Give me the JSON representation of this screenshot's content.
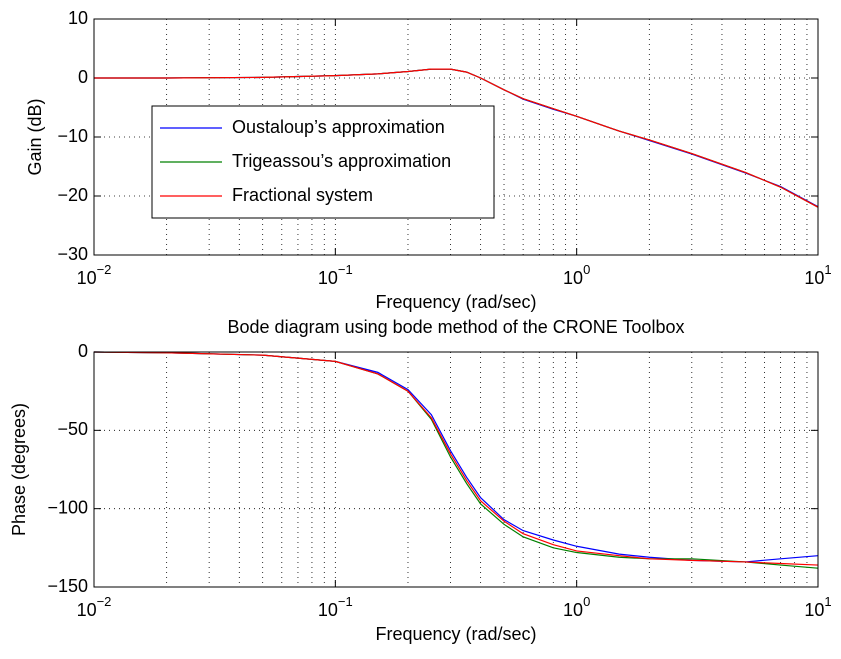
{
  "chart_data": [
    {
      "type": "line",
      "xscale": "log",
      "grid": true,
      "minor_grid": true,
      "legend": "left",
      "xlabel": "Frequency (rad/sec)",
      "ylabel": "Gain (dB)",
      "xlim": [
        0.01,
        10
      ],
      "ylim": [
        -30,
        10
      ],
      "xticks": [
        {
          "value": 0.01,
          "label": "10",
          "exponent": "−2"
        },
        {
          "value": 0.1,
          "label": "10",
          "exponent": "−1"
        },
        {
          "value": 1,
          "label": "10",
          "exponent": "0"
        },
        {
          "value": 10,
          "label": "10",
          "exponent": "1"
        }
      ],
      "yticks": [
        {
          "value": -30,
          "label": "−30"
        },
        {
          "value": -20,
          "label": "−20"
        },
        {
          "value": -10,
          "label": "−10"
        },
        0,
        10
      ],
      "x": [
        0.01,
        0.02,
        0.05,
        0.1,
        0.15,
        0.2,
        0.25,
        0.3,
        0.35,
        0.4,
        0.5,
        0.6,
        0.8,
        1,
        1.5,
        2,
        3,
        5,
        7,
        10
      ],
      "series": [
        {
          "name": "Oustaloup’s approximation",
          "color": "#0000ff",
          "values": [
            0,
            0,
            0.1,
            0.4,
            0.7,
            1.1,
            1.5,
            1.5,
            1.0,
            0,
            -2.0,
            -3.6,
            -5.3,
            -6.5,
            -9.0,
            -10.6,
            -12.9,
            -16.1,
            -18.4,
            -21.8
          ]
        },
        {
          "name": "Trigeassou’s approximation",
          "color": "#008000",
          "values": [
            0,
            0,
            0.1,
            0.4,
            0.7,
            1.1,
            1.5,
            1.5,
            1.0,
            0,
            -2.0,
            -3.5,
            -5.2,
            -6.5,
            -9.0,
            -10.5,
            -12.8,
            -16.0,
            -18.5,
            -21.9
          ]
        },
        {
          "name": "Fractional system",
          "color": "#ff0000",
          "values": [
            0,
            0,
            0.1,
            0.4,
            0.7,
            1.1,
            1.5,
            1.5,
            1.0,
            0,
            -2.0,
            -3.5,
            -5.2,
            -6.5,
            -9.0,
            -10.5,
            -12.8,
            -16.0,
            -18.5,
            -21.9
          ]
        }
      ]
    },
    {
      "type": "line",
      "xscale": "log",
      "grid": true,
      "minor_grid": true,
      "legend": "none",
      "title": "Bode diagram using bode method of the CRONE Toolbox",
      "xlabel": "Frequency (rad/sec)",
      "ylabel": "Phase (degrees)",
      "xlim": [
        0.01,
        10
      ],
      "ylim": [
        -150,
        0
      ],
      "xticks": [
        {
          "value": 0.01,
          "label": "10",
          "exponent": "−2"
        },
        {
          "value": 0.1,
          "label": "10",
          "exponent": "−1"
        },
        {
          "value": 1,
          "label": "10",
          "exponent": "0"
        },
        {
          "value": 10,
          "label": "10",
          "exponent": "1"
        }
      ],
      "yticks": [
        {
          "value": -150,
          "label": "−150"
        },
        {
          "value": -100,
          "label": "−100"
        },
        {
          "value": -50,
          "label": "−50"
        },
        0
      ],
      "x": [
        0.01,
        0.02,
        0.05,
        0.1,
        0.15,
        0.2,
        0.25,
        0.3,
        0.35,
        0.4,
        0.5,
        0.6,
        0.8,
        1,
        1.5,
        2,
        3,
        5,
        7,
        10
      ],
      "series": [
        {
          "name": "Oustaloup’s approximation",
          "color": "#0000ff",
          "values": [
            0,
            -0.5,
            -2,
            -6,
            -13,
            -24,
            -40,
            -63,
            -80,
            -93,
            -107,
            -114,
            -120,
            -124,
            -129,
            -131,
            -133,
            -134,
            -132,
            -130
          ]
        },
        {
          "name": "Trigeassou’s approximation",
          "color": "#008000",
          "values": [
            0,
            -0.5,
            -2,
            -6,
            -14,
            -25,
            -43,
            -67,
            -84,
            -97,
            -110,
            -118,
            -125,
            -128,
            -131,
            -132,
            -132,
            -134,
            -136,
            -138
          ]
        },
        {
          "name": "Fractional system",
          "color": "#ff0000",
          "values": [
            0,
            -0.5,
            -2,
            -6,
            -14,
            -25,
            -42,
            -65,
            -82,
            -95,
            -108,
            -116,
            -123,
            -127,
            -130,
            -132,
            -133,
            -134,
            -135,
            -136
          ]
        }
      ]
    }
  ]
}
